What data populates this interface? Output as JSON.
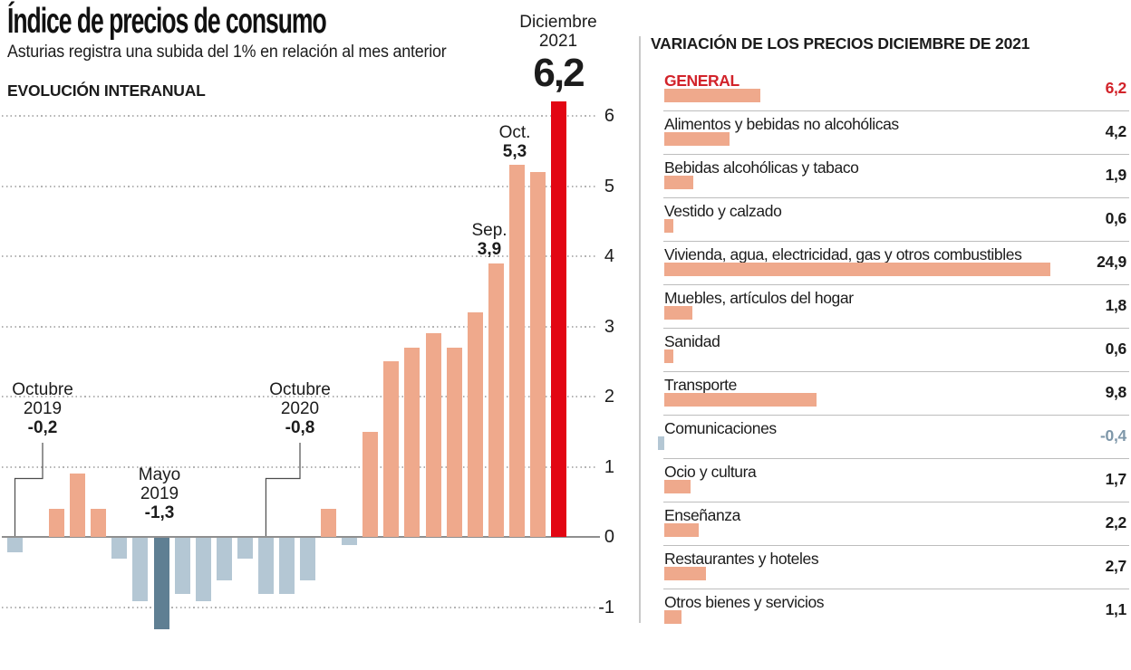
{
  "page": {
    "title": "Índice de precios de consumo",
    "subtitle": "Asturias registra una subida del 1% en relación al mes anterior"
  },
  "evolution": {
    "section_label": "EVOLUCIÓN INTERANUAL"
  },
  "variation": {
    "title": "VARIACIÓN DE LOS PRECIOS DICIEMBRE DE 2021"
  },
  "colors": {
    "positive_bar": "#efa98c",
    "negative_bar": "#b4c7d4",
    "lowest_bar": "#5f7f93",
    "highlight_bar": "#e20613",
    "accent_red_text": "#d2232a",
    "negative_value_text": "#7e97a9",
    "text": "#1c1c1c"
  },
  "chart_data": [
    {
      "id": "evolucion_interanual",
      "type": "bar",
      "title": "EVOLUCIÓN INTERANUAL",
      "x_range": [
        "Octubre 2019",
        "Diciembre 2021"
      ],
      "x_axis_labels_shown": false,
      "values": [
        -0.2,
        0,
        0.4,
        0.9,
        0.4,
        -0.3,
        -0.9,
        -1.3,
        -0.8,
        -0.9,
        -0.6,
        -0.3,
        -0.8,
        -0.8,
        -0.6,
        0.4,
        -0.1,
        1.5,
        2.5,
        2.7,
        2.9,
        2.7,
        3.2,
        3.9,
        5.3,
        5.2,
        6.2
      ],
      "yticks": [
        6,
        5,
        4,
        3,
        2,
        1,
        0,
        -1
      ],
      "ylim": [
        -1.5,
        6.5
      ],
      "grid": "dotted-horizontal",
      "annotations": [
        {
          "index": 0,
          "lines": [
            "Octubre",
            "2019"
          ],
          "value": "-0,2",
          "connector": true,
          "big": false
        },
        {
          "index": 7,
          "lines": [
            "Mayo",
            "2019"
          ],
          "value": "-1,3",
          "connector": false,
          "big": false
        },
        {
          "index": 12,
          "lines": [
            "Octubre",
            "2020"
          ],
          "value": "-0,8",
          "connector": true,
          "big": false
        },
        {
          "index": 23,
          "lines": [
            "Sep."
          ],
          "value": "3,9",
          "connector": false,
          "big": false
        },
        {
          "index": 24,
          "lines": [
            "Oct."
          ],
          "value": "5,3",
          "connector": false,
          "big": false
        },
        {
          "index": 26,
          "lines": [
            "Diciembre",
            "2021"
          ],
          "value": "6,2",
          "connector": false,
          "big": true
        }
      ]
    },
    {
      "id": "variacion_precios",
      "type": "bar",
      "orientation": "horizontal",
      "title": "VARIACIÓN DE LOS PRECIOS DICIEMBRE DE 2021",
      "categories": [
        "GENERAL",
        "Alimentos y bebidas no alcohólicas",
        "Bebidas alcohólicas y tabaco",
        "Vestido y calzado",
        "Vivienda, agua, electricidad, gas y otros combustibles",
        "Muebles, artículos del hogar",
        "Sanidad",
        "Transporte",
        "Comunicaciones",
        "Ocio y cultura",
        "Enseñanza",
        "Restaurantes y hoteles",
        "Otros bienes y servicios"
      ],
      "values": [
        6.2,
        4.2,
        1.9,
        0.6,
        24.9,
        1.8,
        0.6,
        9.8,
        -0.4,
        1.7,
        2.2,
        2.7,
        1.1
      ],
      "value_labels": [
        "6,2",
        "4,2",
        "1,9",
        "0,6",
        "24,9",
        "1,8",
        "0,6",
        "9,8",
        "-0,4",
        "1,7",
        "2,2",
        "2,7",
        "1,1"
      ]
    }
  ]
}
